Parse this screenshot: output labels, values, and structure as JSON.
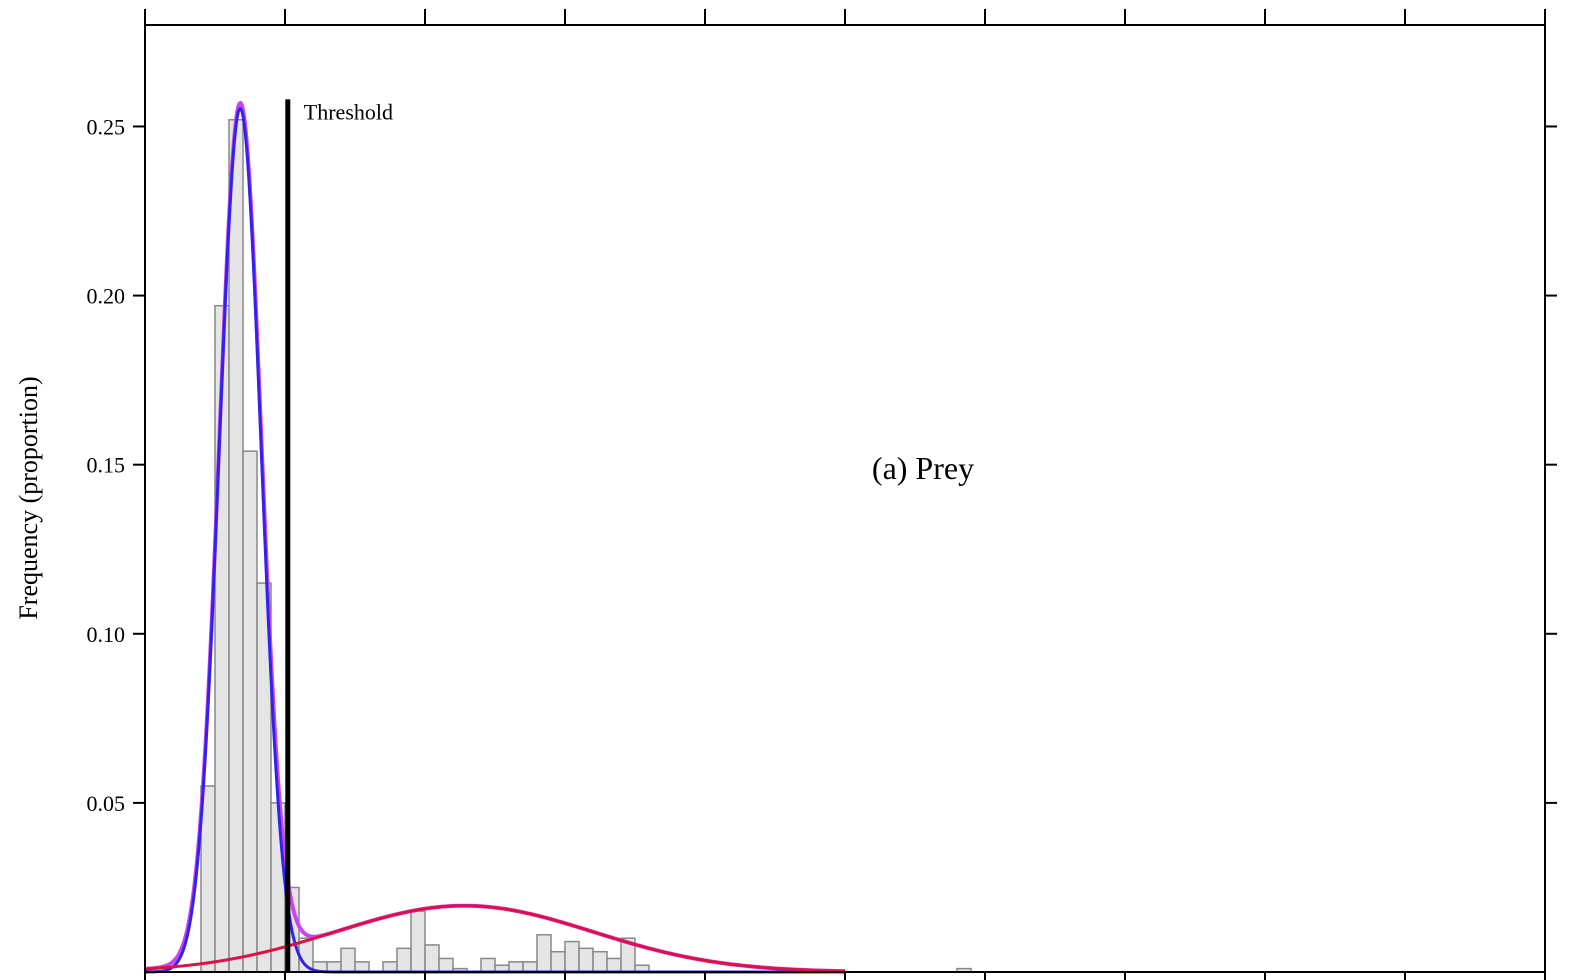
{
  "chart_data": {
    "type": "bar",
    "title": "",
    "panel_label": "(a) Prey",
    "xlabel": "",
    "ylabel": "Frequency (proportion)",
    "xlim": [
      0,
      50
    ],
    "ylim": [
      0,
      0.28
    ],
    "y_ticks": [
      0.05,
      0.1,
      0.15,
      0.2,
      0.25
    ],
    "y_tick_labels": [
      "0.05",
      "0.10",
      "0.15",
      "0.20",
      "0.25"
    ],
    "x_ticks": [
      0,
      5,
      10,
      15,
      20,
      25,
      30,
      35,
      40,
      45,
      50
    ],
    "grid": false,
    "legend": "none",
    "bin_width": 0.5,
    "bins": [
      {
        "x0": 1.5,
        "value": 0.0001
      },
      {
        "x0": 2.0,
        "value": 0.055
      },
      {
        "x0": 2.5,
        "value": 0.197
      },
      {
        "x0": 3.0,
        "value": 0.252
      },
      {
        "x0": 3.5,
        "value": 0.154
      },
      {
        "x0": 4.0,
        "value": 0.115
      },
      {
        "x0": 4.5,
        "value": 0.05
      },
      {
        "x0": 5.0,
        "value": 0.025
      },
      {
        "x0": 5.5,
        "value": 0.01
      },
      {
        "x0": 6.0,
        "value": 0.003
      },
      {
        "x0": 6.5,
        "value": 0.003
      },
      {
        "x0": 7.0,
        "value": 0.007
      },
      {
        "x0": 7.5,
        "value": 0.003
      },
      {
        "x0": 8.5,
        "value": 0.003
      },
      {
        "x0": 9.0,
        "value": 0.007
      },
      {
        "x0": 9.5,
        "value": 0.018
      },
      {
        "x0": 10.0,
        "value": 0.008
      },
      {
        "x0": 10.5,
        "value": 0.004
      },
      {
        "x0": 11.0,
        "value": 0.001
      },
      {
        "x0": 12.0,
        "value": 0.004
      },
      {
        "x0": 12.5,
        "value": 0.002
      },
      {
        "x0": 13.0,
        "value": 0.003
      },
      {
        "x0": 13.5,
        "value": 0.003
      },
      {
        "x0": 14.0,
        "value": 0.011
      },
      {
        "x0": 14.5,
        "value": 0.006
      },
      {
        "x0": 15.0,
        "value": 0.009
      },
      {
        "x0": 15.5,
        "value": 0.007
      },
      {
        "x0": 16.0,
        "value": 0.006
      },
      {
        "x0": 16.5,
        "value": 0.004
      },
      {
        "x0": 17.0,
        "value": 0.01
      },
      {
        "x0": 17.5,
        "value": 0.002
      },
      {
        "x0": 29.0,
        "value": 0.001
      }
    ],
    "curves": [
      {
        "color": "#cc44ee",
        "width": 4,
        "components": [
          {
            "mean": 3.4,
            "sd": 0.75,
            "weight": 0.475
          },
          {
            "mean": 11.4,
            "sd": 4.6,
            "weight": 0.226
          }
        ],
        "domain": [
          0,
          25
        ]
      },
      {
        "color": "#3322ee",
        "width": 3,
        "components": [
          {
            "mean": 3.4,
            "sd": 0.75,
            "weight": 0.48
          }
        ],
        "domain": [
          0,
          25
        ]
      },
      {
        "color": "#dd1144",
        "width": 3,
        "components": [
          {
            "mean": 11.4,
            "sd": 4.6,
            "weight": 0.226
          }
        ],
        "domain": [
          0,
          25
        ]
      }
    ],
    "threshold": {
      "x": 5.1,
      "label": "Threshold",
      "y_top": 0.258
    }
  }
}
